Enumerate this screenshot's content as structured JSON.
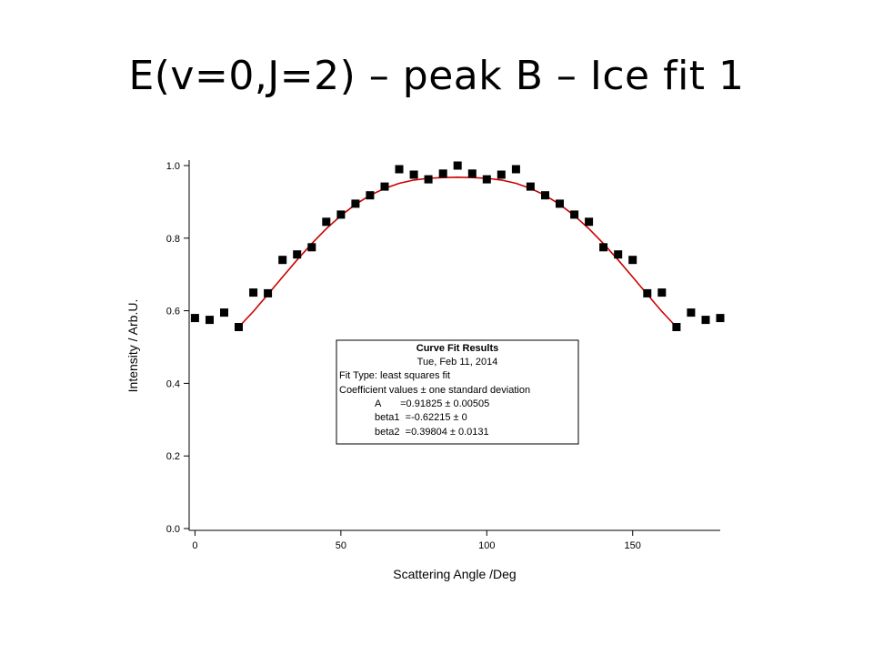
{
  "slide": {
    "title": "E(v=0,J=2) – peak B – Ice fit 1"
  },
  "chart_data": {
    "type": "scatter",
    "xlabel": "Scattering Angle /Deg",
    "ylabel": "Intensity / Arb.U.",
    "xlim": [
      -2,
      180
    ],
    "ylim": [
      -0.005,
      1.015
    ],
    "x_ticks": [
      0,
      50,
      100,
      150
    ],
    "y_ticks": [
      0.0,
      0.2,
      0.4,
      0.6,
      0.8,
      1.0
    ],
    "x_tick_labels": [
      "0",
      "50",
      "100",
      "150"
    ],
    "y_tick_labels": [
      "0.0",
      "0.2",
      "0.4",
      "0.6",
      "0.8",
      "1.0"
    ],
    "marker_color": "#000000",
    "fit_color": "#cc0000",
    "series": [
      {
        "type": "scatter",
        "x": [
          0,
          5,
          10,
          15,
          20,
          25,
          30,
          35,
          40,
          45,
          50,
          55,
          60,
          65,
          70,
          75,
          80,
          85,
          90,
          95,
          100,
          105,
          110,
          115,
          120,
          125,
          130,
          135,
          140,
          145,
          150,
          155,
          160,
          165,
          170,
          175,
          180
        ],
        "y": [
          0.58,
          0.575,
          0.595,
          0.555,
          0.65,
          0.648,
          0.74,
          0.755,
          0.775,
          0.845,
          0.865,
          0.895,
          0.918,
          0.942,
          0.99,
          0.975,
          0.962,
          0.978,
          1.0,
          0.978,
          0.962,
          0.975,
          0.99,
          0.942,
          0.918,
          0.895,
          0.865,
          0.845,
          0.775,
          0.755,
          0.74,
          0.648,
          0.65,
          0.555,
          0.595,
          0.575,
          0.58
        ]
      },
      {
        "type": "line",
        "x": [
          15,
          20,
          25,
          30,
          35,
          40,
          45,
          50,
          55,
          60,
          65,
          70,
          75,
          80,
          85,
          90,
          95,
          100,
          105,
          110,
          115,
          120,
          125,
          130,
          135,
          140,
          145,
          150,
          155,
          160,
          165
        ],
        "y": [
          0.555,
          0.598,
          0.645,
          0.693,
          0.74,
          0.785,
          0.826,
          0.862,
          0.893,
          0.918,
          0.937,
          0.951,
          0.96,
          0.965,
          0.967,
          0.968,
          0.967,
          0.965,
          0.96,
          0.951,
          0.937,
          0.918,
          0.893,
          0.862,
          0.826,
          0.785,
          0.74,
          0.693,
          0.645,
          0.598,
          0.555
        ]
      }
    ],
    "annotation": {
      "lines": [
        "Curve Fit Results",
        "Tue, Feb 11, 2014",
        "Fit Type: least squares fit",
        "Coefficient values ± one standard deviation",
        "A       =0.91825 ± 0.00505",
        "beta1  =-0.62215 ± 0",
        "beta2  =0.39804 ± 0.0131"
      ]
    }
  }
}
